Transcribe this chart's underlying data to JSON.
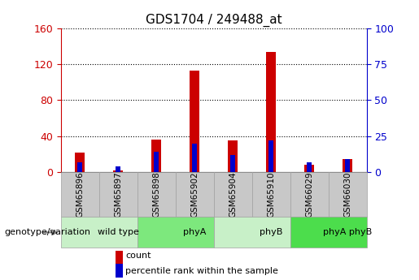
{
  "title": "GDS1704 / 249488_at",
  "samples": [
    "GSM65896",
    "GSM65897",
    "GSM65898",
    "GSM65902",
    "GSM65904",
    "GSM65910",
    "GSM66029",
    "GSM66030"
  ],
  "count_values": [
    22,
    2,
    36,
    113,
    35,
    133,
    8,
    15
  ],
  "percentile_values": [
    7,
    4,
    14,
    20,
    12,
    22,
    7,
    9
  ],
  "groups": [
    {
      "label": "wild type",
      "start": 0,
      "end": 2,
      "color": "#c8f0c8"
    },
    {
      "label": "phyA",
      "start": 2,
      "end": 4,
      "color": "#7de87d"
    },
    {
      "label": "phyB",
      "start": 4,
      "end": 6,
      "color": "#c8f0c8"
    },
    {
      "label": "phyA phyB",
      "start": 6,
      "end": 8,
      "color": "#4cdd4c"
    }
  ],
  "ylim_left": [
    0,
    160
  ],
  "ylim_right": [
    0,
    100
  ],
  "yticks_left": [
    0,
    40,
    80,
    120,
    160
  ],
  "yticks_right": [
    0,
    25,
    50,
    75,
    100
  ],
  "count_color": "#cc0000",
  "percentile_color": "#0000cc",
  "bar_width": 0.25,
  "pct_bar_width": 0.12,
  "tick_label_color_left": "#cc0000",
  "tick_label_color_right": "#0000cc",
  "group_label": "genotype/variation",
  "legend_count": "count",
  "legend_percentile": "percentile rank within the sample",
  "label_area_color": "#c8c8c8",
  "label_area_border": "#a0a0a0"
}
